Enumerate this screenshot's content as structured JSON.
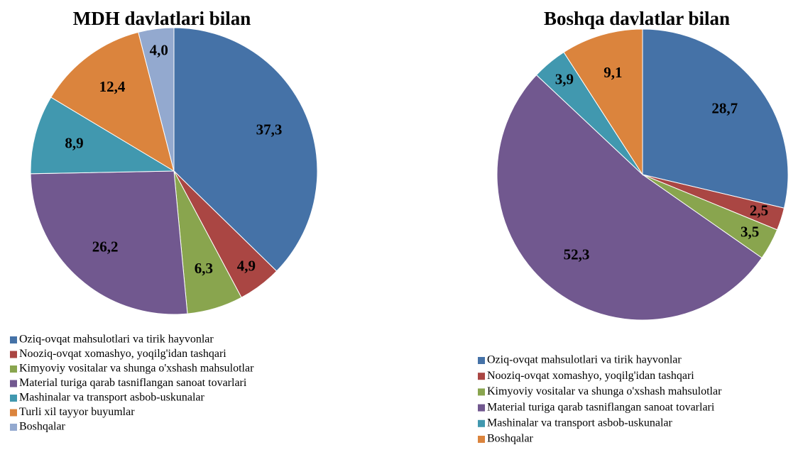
{
  "chart_data": [
    {
      "type": "pie",
      "title": "MDH davlatlari bilan",
      "categories": [
        "Oziq-ovqat mahsulotlari va tirik hayvonlar",
        "Nooziq-ovqat xomashyo, yoqilg'idan tashqari",
        "Kimyoviy vositalar va shunga o'xshash mahsulotlar",
        "Material turiga qarab tasniflangan sanoat tovarlari",
        "Mashinalar va transport asbob-uskunalar",
        "Turli xil tayyor buyumlar",
        "Boshqalar"
      ],
      "values": [
        37.3,
        4.9,
        6.3,
        26.2,
        8.9,
        12.4,
        4.0
      ],
      "value_labels": [
        "37,3",
        "4,9",
        "6,3",
        "26,2",
        "8,9",
        "12,4",
        "4,0"
      ],
      "colors": [
        "#4572a7",
        "#aa4643",
        "#89a54e",
        "#71588f",
        "#4198af",
        "#db843d",
        "#93a9cf"
      ]
    },
    {
      "type": "pie",
      "title": "Boshqa  davlatlar bilan",
      "categories": [
        "Oziq-ovqat mahsulotlari va tirik hayvonlar",
        "Nooziq-ovqat xomashyo, yoqilg'idan tashqari",
        "Kimyoviy vositalar va shunga o'xshash mahsulotlar",
        "Material turiga qarab tasniflangan sanoat tovarlari",
        "Mashinalar va transport asbob-uskunalar",
        "Boshqalar"
      ],
      "values": [
        28.7,
        2.5,
        3.5,
        52.3,
        3.9,
        9.1
      ],
      "value_labels": [
        "28,7",
        "2,5",
        "3,5",
        "52,3",
        "3,9",
        "9,1"
      ],
      "colors": [
        "#4572a7",
        "#aa4643",
        "#89a54e",
        "#71588f",
        "#4198af",
        "#db843d"
      ]
    }
  ]
}
